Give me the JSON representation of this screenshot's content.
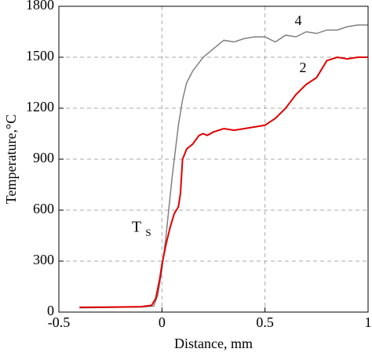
{
  "chart_data": {
    "type": "line",
    "xlabel": "Distance, mm",
    "ylabel": "Temperature,°C",
    "annotations": [
      "4",
      "2",
      "T",
      "S"
    ],
    "xlim": [
      -0.5,
      1
    ],
    "xticks": [
      -0.5,
      0,
      0.5,
      1
    ],
    "ylim": [
      0,
      1800
    ],
    "yticks": [
      0,
      300,
      600,
      900,
      1200,
      1500,
      1800
    ],
    "grid": true,
    "series": [
      {
        "color": "#808080",
        "x": [
          -0.4,
          -0.1,
          -0.04,
          -0.02,
          0,
          0.02,
          0.05,
          0.08,
          0.1,
          0.12,
          0.15,
          0.2,
          0.25,
          0.3,
          0.35,
          0.4,
          0.45,
          0.5,
          0.55,
          0.6,
          0.65,
          0.7,
          0.75,
          0.8,
          0.85,
          0.9,
          0.95,
          1
        ],
        "values": [
          25,
          30,
          35,
          100,
          250,
          450,
          800,
          1100,
          1250,
          1350,
          1420,
          1500,
          1550,
          1600,
          1590,
          1610,
          1620,
          1620,
          1590,
          1630,
          1620,
          1650,
          1640,
          1660,
          1660,
          1680,
          1690,
          1690
        ]
      },
      {
        "color": "#e00000",
        "x": [
          -0.4,
          -0.2,
          -0.1,
          -0.05,
          -0.03,
          -0.01,
          0,
          0.02,
          0.04,
          0.06,
          0.08,
          0.09,
          0.1,
          0.12,
          0.15,
          0.18,
          0.2,
          0.22,
          0.25,
          0.3,
          0.35,
          0.4,
          0.45,
          0.5,
          0.55,
          0.6,
          0.65,
          0.7,
          0.75,
          0.8,
          0.85,
          0.9,
          0.95,
          1
        ],
        "values": [
          28,
          30,
          32,
          40,
          80,
          200,
          280,
          400,
          500,
          580,
          620,
          700,
          900,
          960,
          990,
          1040,
          1050,
          1040,
          1060,
          1080,
          1070,
          1080,
          1090,
          1100,
          1140,
          1200,
          1280,
          1340,
          1380,
          1480,
          1500,
          1490,
          1500,
          1500
        ]
      }
    ]
  }
}
